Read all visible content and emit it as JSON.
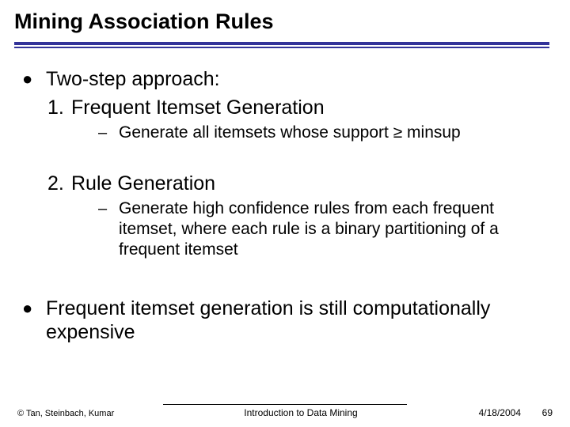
{
  "title": "Mining Association Rules",
  "colors": {
    "rule": "#333399",
    "text": "#000000",
    "background": "#ffffff"
  },
  "typography": {
    "title_family": "Verdana",
    "title_weight": 700,
    "title_size_pt": 20,
    "body_family": "Arial",
    "l1_size_pt": 19,
    "l3_size_pt": 16,
    "footer_size_pt": 9
  },
  "bullets": {
    "l1_glyph": "●",
    "l3_glyph": "–"
  },
  "content": {
    "item1": {
      "text": "Two-step approach:",
      "sub1": {
        "num": "1.",
        "text": "Frequent Itemset Generation",
        "detail": "Generate all itemsets whose support ≥ minsup"
      },
      "sub2": {
        "num": "2.",
        "text": "Rule Generation",
        "detail": "Generate high confidence rules from each frequent itemset, where each rule is a binary partitioning of a frequent itemset"
      }
    },
    "item2": {
      "text": "Frequent itemset generation is still computationally expensive"
    }
  },
  "footer": {
    "left": "© Tan, Steinbach, Kumar",
    "center": "Introduction to Data Mining",
    "date": "4/18/2004",
    "page": "69"
  }
}
